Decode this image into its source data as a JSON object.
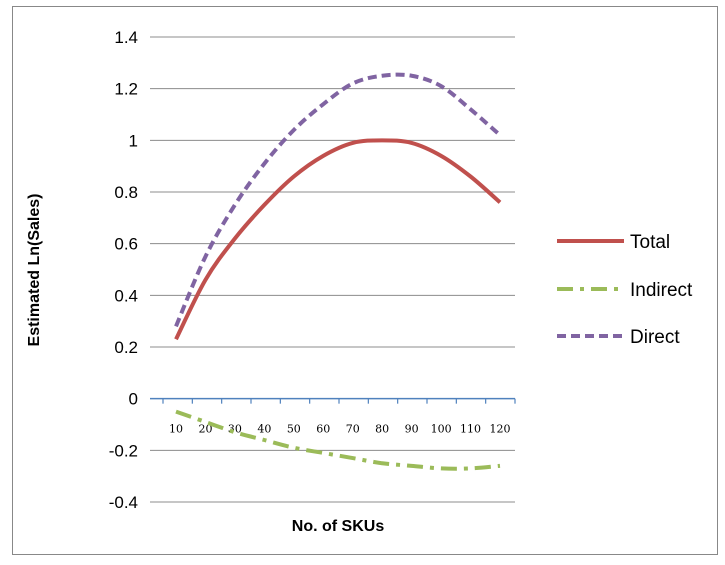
{
  "chart_data": {
    "type": "line",
    "title": "",
    "xlabel": "No. of SKUs",
    "ylabel": "Estimated Ln(Sales)",
    "x": [
      10,
      20,
      30,
      40,
      50,
      60,
      70,
      80,
      90,
      100,
      110,
      120
    ],
    "x_tick_labels": [
      "10",
      "20",
      "30",
      "40",
      "50",
      "60",
      "70",
      "80",
      "90",
      "100",
      "110",
      "120"
    ],
    "ylim": [
      -0.4,
      1.4
    ],
    "y_ticks": [
      -0.4,
      -0.2,
      0,
      0.2,
      0.4,
      0.6,
      0.8,
      1,
      1.2,
      1.4
    ],
    "y_tick_labels": [
      "-0.4",
      "-0.2",
      "0",
      "0.2",
      "0.4",
      "0.6",
      "0.8",
      "1",
      "1.2",
      "1.4"
    ],
    "grid": "horizontal",
    "legend_position": "right",
    "series": [
      {
        "name": "Total",
        "color": "#C0504D",
        "style": "solid",
        "values": [
          0.23,
          0.46,
          0.62,
          0.75,
          0.86,
          0.94,
          0.99,
          1.0,
          0.99,
          0.94,
          0.86,
          0.76
        ]
      },
      {
        "name": "Indirect",
        "color": "#9BBB59",
        "style": "dash-dot",
        "values": [
          -0.05,
          -0.09,
          -0.13,
          -0.16,
          -0.19,
          -0.21,
          -0.23,
          -0.25,
          -0.26,
          -0.27,
          -0.27,
          -0.26
        ]
      },
      {
        "name": "Direct",
        "color": "#8064A2",
        "style": "dashed",
        "values": [
          0.28,
          0.55,
          0.75,
          0.91,
          1.04,
          1.14,
          1.22,
          1.25,
          1.25,
          1.21,
          1.12,
          1.02
        ]
      }
    ]
  }
}
